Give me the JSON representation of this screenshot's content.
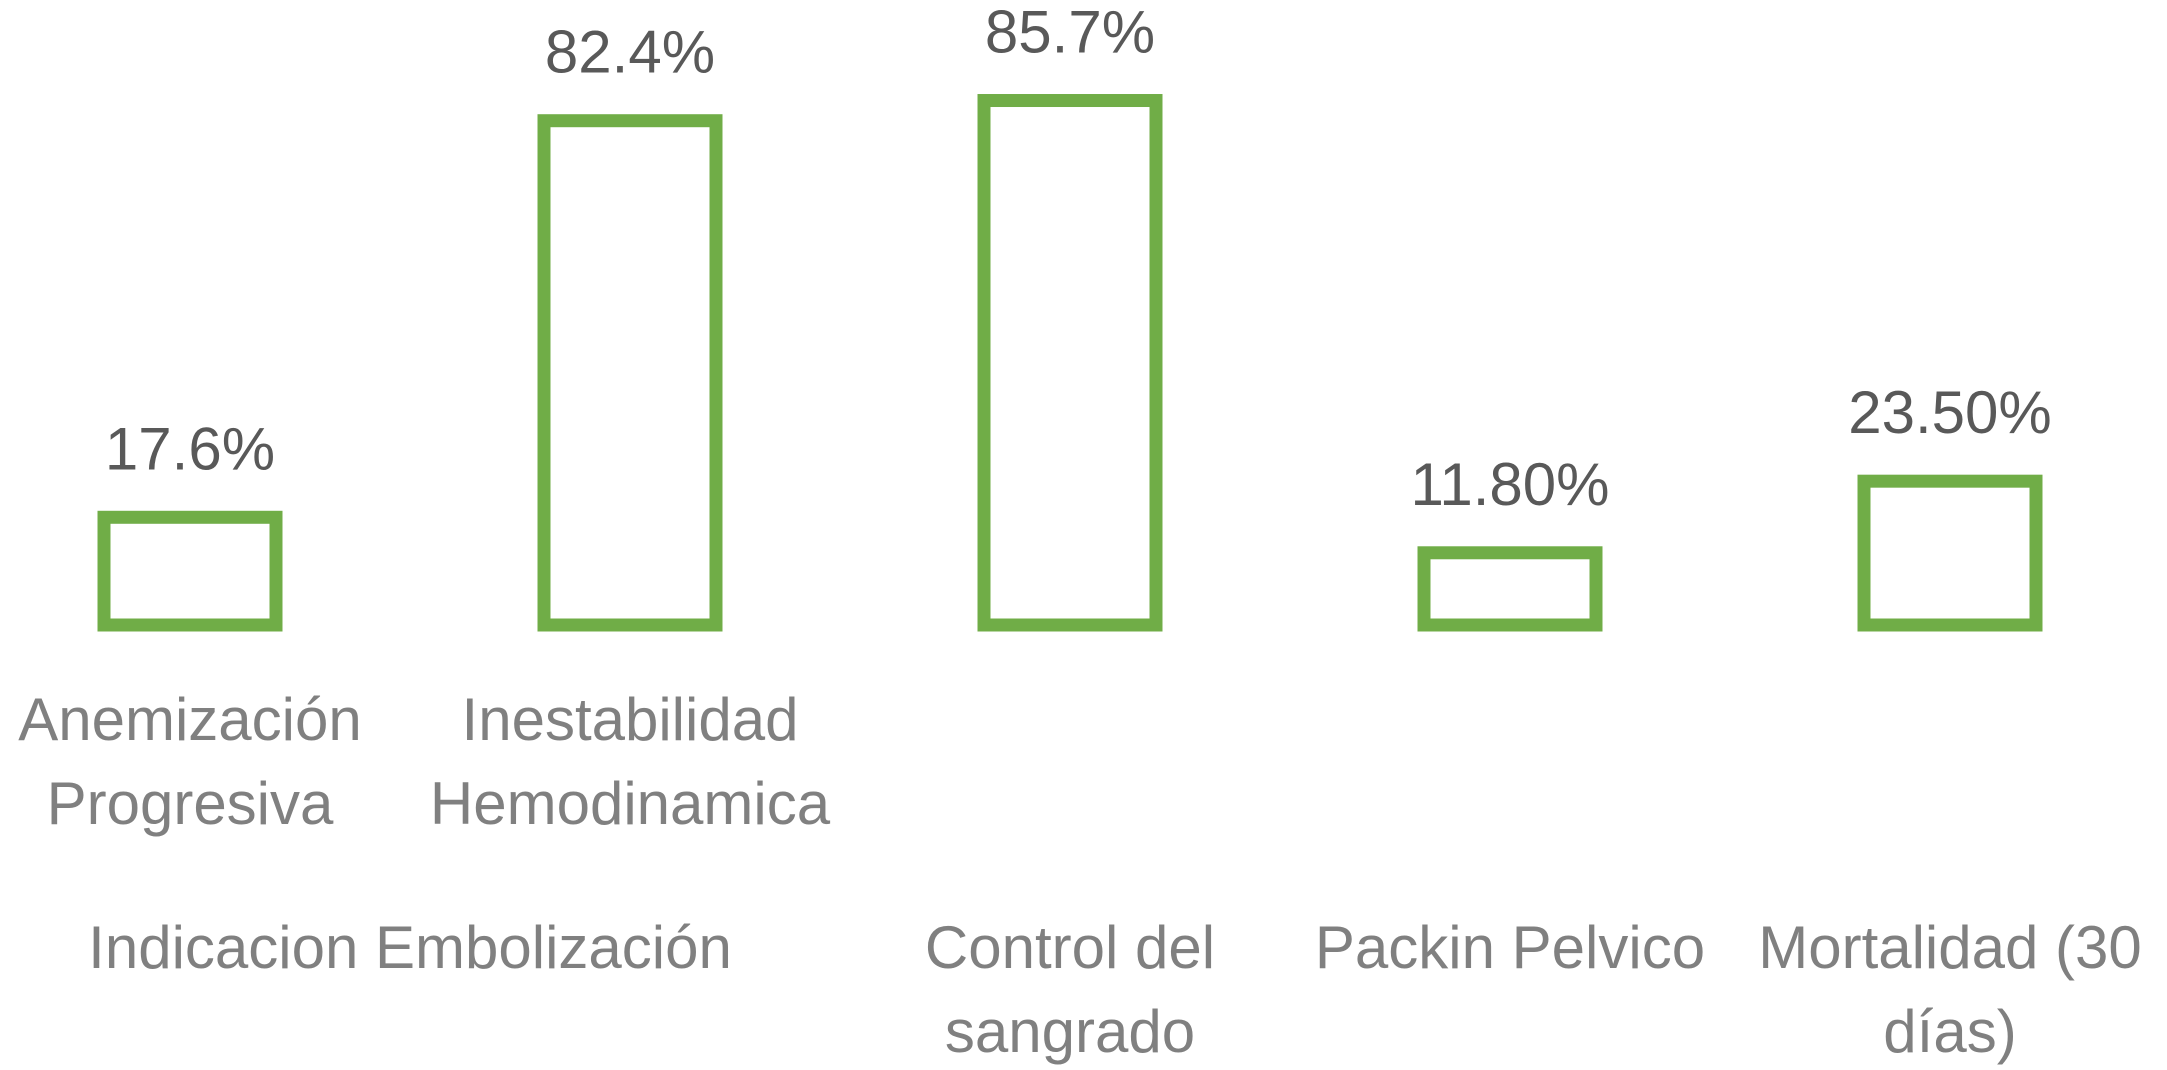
{
  "chart_data": {
    "type": "bar",
    "title": "",
    "xlabel": "",
    "ylabel": "",
    "ylim": [
      0,
      100
    ],
    "grid": false,
    "legend": "none",
    "color": "#70AD47",
    "bar_style": "outline",
    "categories": [
      {
        "label": "Anemización Progresiva",
        "lines": [
          "Anemización",
          "Progresiva"
        ],
        "group": "Indicacion Embolización"
      },
      {
        "label": "Inestabilidad Hemodinamica",
        "lines": [
          "Inestabilidad",
          "Hemodinamica"
        ],
        "group": "Indicacion Embolización"
      },
      {
        "label": "Control del sangrado",
        "lines": [
          "Control del",
          "sangrado"
        ],
        "group": ""
      },
      {
        "label": "Packin Pelvico",
        "lines": [
          "Packin Pelvico"
        ],
        "group": ""
      },
      {
        "label": "Mortalidad (30 días)",
        "lines": [
          "Mortalidad (30",
          "días)"
        ],
        "group": ""
      }
    ],
    "groups": [
      {
        "label": "Indicacion Embolización",
        "span": [
          0,
          1
        ]
      }
    ],
    "values": [
      17.6,
      82.4,
      85.7,
      11.8,
      23.5
    ],
    "data_labels": [
      "17.6%",
      "82.4%",
      "85.7%",
      "11.80%",
      "23.50%"
    ]
  }
}
